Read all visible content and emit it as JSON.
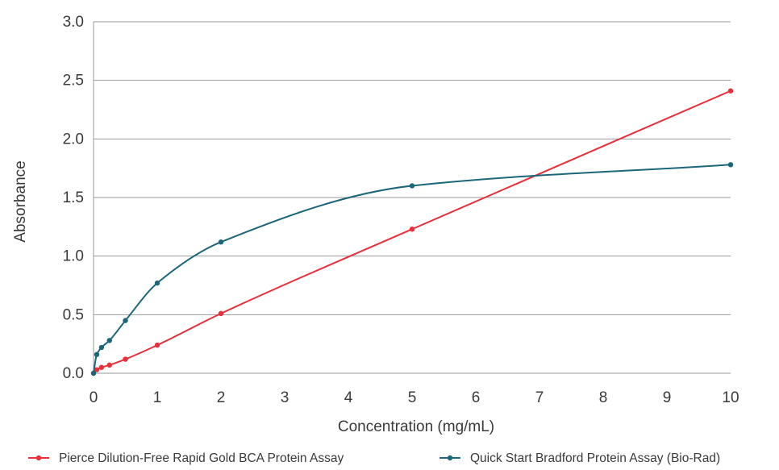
{
  "chart_data": {
    "type": "line",
    "title": "",
    "xlabel": "Concentration (mg/mL)",
    "ylabel": "Absorbance",
    "xlim": [
      0,
      10
    ],
    "ylim": [
      0,
      3.0
    ],
    "xticks": [
      "0",
      "1",
      "2",
      "3",
      "4",
      "5",
      "6",
      "7",
      "8",
      "9",
      "10"
    ],
    "yticks": [
      "0.0",
      "0.5",
      "1.0",
      "1.5",
      "2.0",
      "2.5",
      "3.0"
    ],
    "grid": "horizontal",
    "legend_position": "bottom",
    "series": [
      {
        "name": "Pierce Dilution-Free Rapid Gold BCA Protein Assay",
        "color": "#e8303a",
        "x": [
          0,
          0.05,
          0.125,
          0.25,
          0.5,
          1,
          2,
          5,
          10
        ],
        "y": [
          0.0,
          0.03,
          0.05,
          0.07,
          0.12,
          0.24,
          0.51,
          1.23,
          2.41
        ]
      },
      {
        "name": "Quick Start Bradford Protein Assay (Bio-Rad)",
        "color": "#1b6679",
        "x": [
          0,
          0.05,
          0.125,
          0.25,
          0.5,
          1,
          2,
          5,
          10
        ],
        "y": [
          0.0,
          0.16,
          0.22,
          0.28,
          0.45,
          0.77,
          1.12,
          1.6,
          1.78
        ]
      }
    ]
  }
}
